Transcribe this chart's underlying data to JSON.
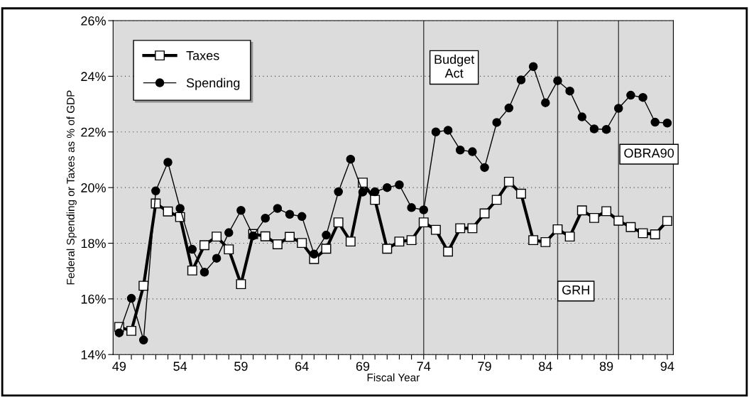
{
  "chart_data": {
    "type": "line",
    "xlabel": "Fiscal Year",
    "ylabel": "Federal Spending or Taxes as % of GDP",
    "x": [
      49,
      50,
      51,
      52,
      53,
      54,
      55,
      56,
      57,
      58,
      59,
      60,
      61,
      62,
      63,
      64,
      65,
      66,
      67,
      68,
      69,
      70,
      71,
      72,
      73,
      74,
      75,
      76,
      77,
      78,
      79,
      80,
      81,
      82,
      83,
      84,
      85,
      86,
      87,
      88,
      89,
      90,
      91,
      92,
      93,
      94
    ],
    "series": [
      {
        "name": "Taxes",
        "color": "#000000",
        "marker": "square",
        "values": [
          14.99,
          14.85,
          16.47,
          19.43,
          19.14,
          18.94,
          17.02,
          17.93,
          18.24,
          17.78,
          16.53,
          18.33,
          18.25,
          17.96,
          18.23,
          18.01,
          17.43,
          17.8,
          18.75,
          18.06,
          20.18,
          19.56,
          17.8,
          18.06,
          18.11,
          18.75,
          18.48,
          17.7,
          18.54,
          18.54,
          19.07,
          19.56,
          20.21,
          19.78,
          18.11,
          18.04,
          18.5,
          18.24,
          19.18,
          18.91,
          19.15,
          18.81,
          18.58,
          18.36,
          18.32,
          18.8
        ]
      },
      {
        "name": "Spending",
        "color": "#000000",
        "marker": "circle",
        "values": [
          14.78,
          16.02,
          14.52,
          19.88,
          20.91,
          19.25,
          17.78,
          16.96,
          17.46,
          18.38,
          19.18,
          18.27,
          18.9,
          19.25,
          19.04,
          18.96,
          17.61,
          18.29,
          19.85,
          21.02,
          19.84,
          19.85,
          20.0,
          20.1,
          19.28,
          19.2,
          22.0,
          22.06,
          21.35,
          21.29,
          20.72,
          22.34,
          22.86,
          23.87,
          24.35,
          23.05,
          23.84,
          23.47,
          22.54,
          22.11,
          22.09,
          22.85,
          23.32,
          23.24,
          22.35,
          22.32
        ]
      }
    ],
    "xlim": [
      48.5,
      94.5
    ],
    "ylim": [
      14,
      26
    ],
    "xticks": [
      49,
      {
        "value": 50,
        "label": null
      },
      {
        "value": 51,
        "label": null
      },
      {
        "value": 52,
        "label": null
      },
      {
        "value": 53,
        "label": null
      },
      54,
      {
        "value": 55,
        "label": null
      },
      {
        "value": 56,
        "label": null
      },
      {
        "value": 57,
        "label": null
      },
      {
        "value": 58,
        "label": null
      },
      59,
      {
        "value": 60,
        "label": null
      },
      {
        "value": 61,
        "label": null
      },
      {
        "value": 62,
        "label": null
      },
      {
        "value": 63,
        "label": null
      },
      64,
      {
        "value": 65,
        "label": null
      },
      {
        "value": 66,
        "label": null
      },
      {
        "value": 67,
        "label": null
      },
      {
        "value": 68,
        "label": null
      },
      69,
      {
        "value": 70,
        "label": null
      },
      {
        "value": 71,
        "label": null
      },
      {
        "value": 72,
        "label": null
      },
      {
        "value": 73,
        "label": null
      },
      74,
      {
        "value": 75,
        "label": null
      },
      {
        "value": 76,
        "label": null
      },
      {
        "value": 77,
        "label": null
      },
      {
        "value": 78,
        "label": null
      },
      79,
      {
        "value": 80,
        "label": null
      },
      {
        "value": 81,
        "label": null
      },
      {
        "value": 82,
        "label": null
      },
      {
        "value": 83,
        "label": null
      },
      84,
      {
        "value": 85,
        "label": null
      },
      {
        "value": 86,
        "label": null
      },
      {
        "value": 87,
        "label": null
      },
      {
        "value": 88,
        "label": null
      },
      89,
      {
        "value": 90,
        "label": null
      },
      {
        "value": 91,
        "label": null
      },
      {
        "value": 92,
        "label": null
      },
      {
        "value": 93,
        "label": null
      },
      94
    ],
    "yticks": [
      {
        "value": 14,
        "label": "14%"
      },
      {
        "value": 16,
        "label": "16%"
      },
      {
        "value": 18,
        "label": "18%"
      },
      {
        "value": 20,
        "label": "20%"
      },
      {
        "value": 22,
        "label": "22%"
      },
      {
        "value": 24,
        "label": "24%"
      },
      {
        "value": 26,
        "label": "26%"
      }
    ],
    "ref_lines": [
      {
        "axis": "x",
        "value": 74,
        "label": "Budget\nAct",
        "color": "#404040"
      },
      {
        "axis": "x",
        "value": 85,
        "label": "GRH",
        "color": "#404040"
      },
      {
        "axis": "x",
        "value": 90,
        "label": "OBRA90",
        "color": "#404040"
      }
    ],
    "grid": "y",
    "legend": "top left",
    "line_style": "solid"
  }
}
